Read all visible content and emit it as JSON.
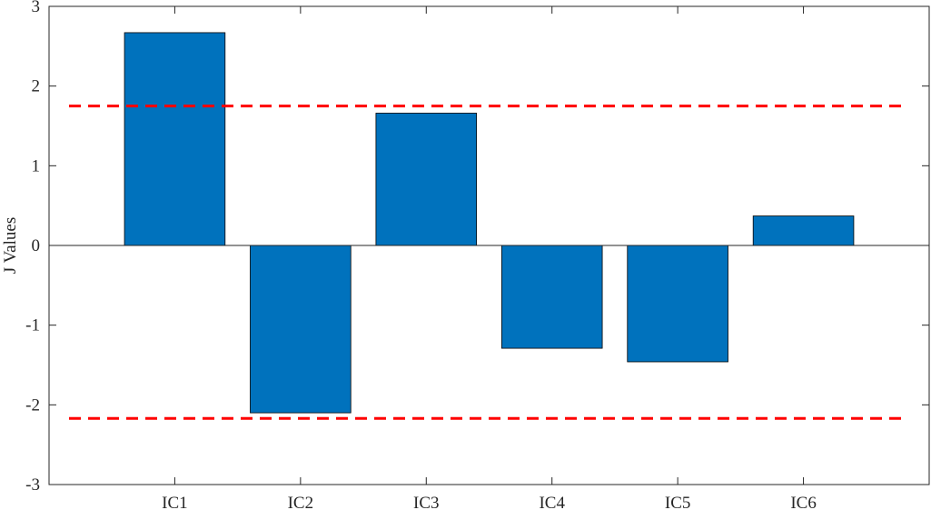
{
  "chart_data": {
    "type": "bar",
    "title": "",
    "xlabel": "",
    "ylabel": "J Values",
    "categories": [
      "IC1",
      "IC2",
      "IC3",
      "IC4",
      "IC5",
      "IC6"
    ],
    "values": [
      2.67,
      -2.1,
      1.66,
      -1.29,
      -1.46,
      0.37
    ],
    "ylim": [
      -3,
      3
    ],
    "xlim": [
      0,
      7
    ],
    "yticks": [
      "-3",
      "-2",
      "-1",
      "0",
      "1",
      "2",
      "3"
    ],
    "yticks_values": [
      -3,
      -2,
      -1,
      0,
      1,
      2,
      3
    ],
    "thresholds": [
      1.75,
      -2.17
    ],
    "bar_color": "#0072bd",
    "threshold_color": "#ff0000",
    "threshold_style": "dashed",
    "zero_line": true,
    "grid": false
  }
}
